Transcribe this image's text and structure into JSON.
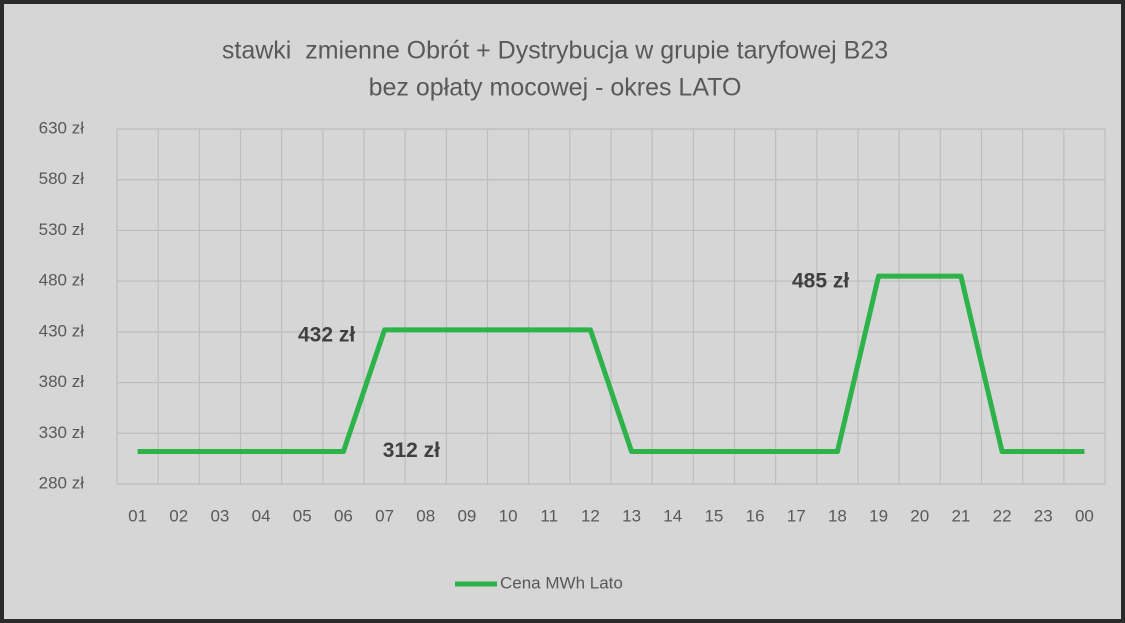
{
  "chart_data": {
    "type": "line",
    "title": [
      "stawki  zmienne Obrót + Dystrybucja w grupie taryfowej B23",
      "bez opłaty mocowej - okres LATO"
    ],
    "categories": [
      "01",
      "02",
      "03",
      "04",
      "05",
      "06",
      "07",
      "08",
      "09",
      "10",
      "11",
      "12",
      "13",
      "14",
      "15",
      "16",
      "17",
      "18",
      "19",
      "20",
      "21",
      "22",
      "23",
      "00"
    ],
    "series": [
      {
        "name": "Cena MWh Lato",
        "color": "#2db34a",
        "values": [
          312,
          312,
          312,
          312,
          312,
          312,
          432,
          432,
          432,
          432,
          432,
          432,
          312,
          312,
          312,
          312,
          312,
          312,
          485,
          485,
          485,
          312,
          312,
          312
        ],
        "value_labels": [
          null,
          null,
          null,
          null,
          null,
          "312 zł",
          "432 zł",
          null,
          null,
          null,
          null,
          null,
          null,
          null,
          null,
          null,
          null,
          null,
          "485 zł",
          null,
          null,
          null,
          null,
          null
        ]
      }
    ],
    "ylim": [
      280,
      630
    ],
    "yticks": [
      {
        "value": 280,
        "label": "280 zł"
      },
      {
        "value": 330,
        "label": "330 zł"
      },
      {
        "value": 380,
        "label": "380 zł"
      },
      {
        "value": 430,
        "label": "430 zł"
      },
      {
        "value": 480,
        "label": "480 zł"
      },
      {
        "value": 530,
        "label": "530 zł"
      },
      {
        "value": 580,
        "label": "580 zł"
      },
      {
        "value": 630,
        "label": "630 zł"
      }
    ],
    "grid": true,
    "legend": "bottom"
  }
}
